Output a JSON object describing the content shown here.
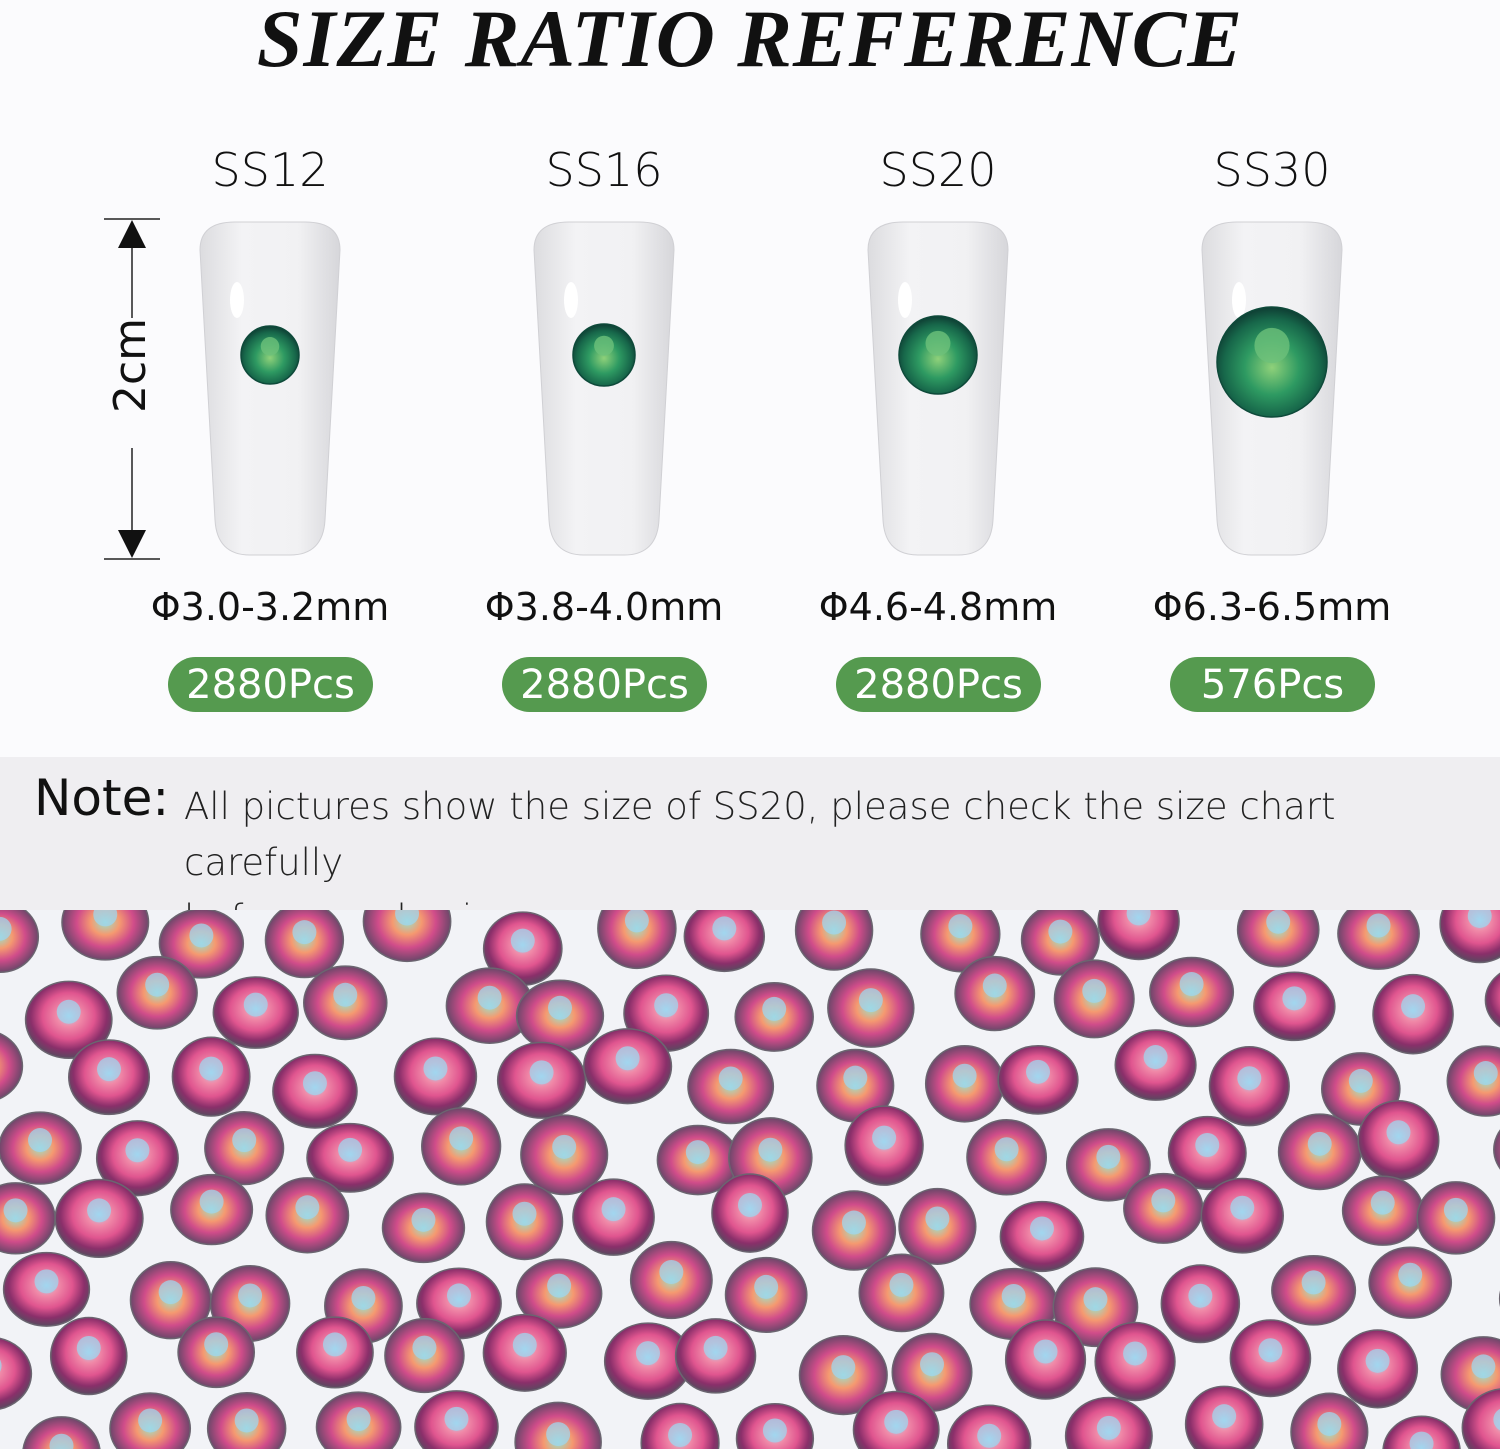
{
  "title": "SIZE RATIO REFERENCE",
  "measurement_label": "2cm",
  "sizes": [
    {
      "name": "SS12",
      "diameter": "Φ3.0-3.2mm",
      "count": "2880Pcs"
    },
    {
      "name": "SS16",
      "diameter": "Φ3.8-4.0mm",
      "count": "2880Pcs"
    },
    {
      "name": "SS20",
      "diameter": "Φ4.6-4.8mm",
      "count": "2880Pcs"
    },
    {
      "name": "SS30",
      "diameter": "Φ6.3-6.5mm",
      "count": "576Pcs"
    }
  ],
  "note": {
    "label": "Note:",
    "line1": "All pictures show the size of SS20, please check the size chart carefully",
    "line2": "before purchasing."
  },
  "colors": {
    "badge": "#559a4f",
    "gem": "#1f8a5a",
    "note_bg": "#efeef1"
  }
}
